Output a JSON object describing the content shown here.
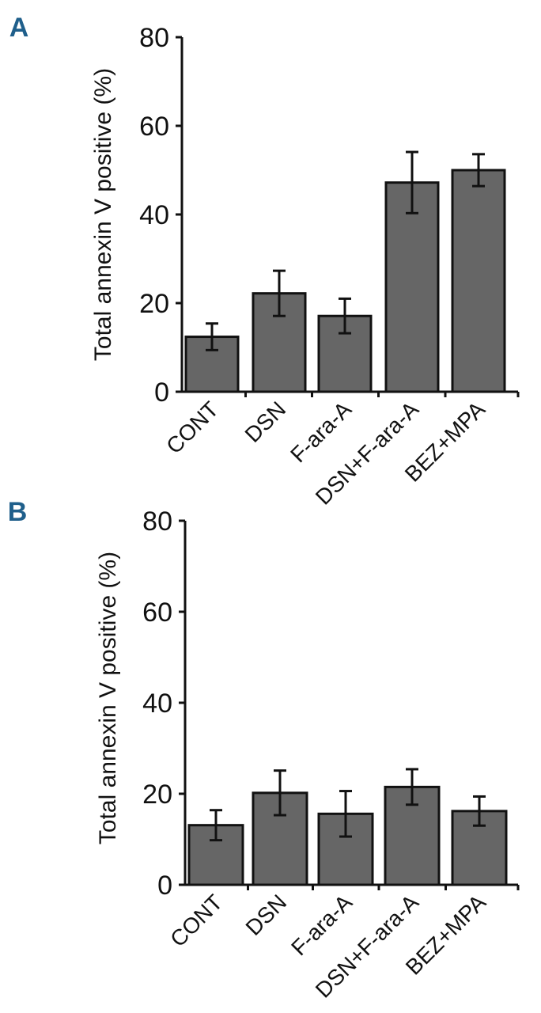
{
  "colors": {
    "bar_fill": "#666666",
    "bar_stroke": "#111111",
    "panel_label": "#1f5f8b",
    "axis": "#111111"
  },
  "chart_data": [
    {
      "panel_label": "A",
      "type": "bar",
      "categories": [
        "CONT",
        "DSN",
        "F-ara-A",
        "DSN+F-ara-A",
        "BEZ+MPA"
      ],
      "values": [
        12.4,
        22.2,
        17.1,
        47.2,
        50.0
      ],
      "errors": [
        3.0,
        5.1,
        3.9,
        6.9,
        3.6
      ],
      "xlabel": "",
      "ylabel": "Total annexin V positive (%)",
      "ylim": [
        0,
        80
      ],
      "yticks": [
        "0",
        "20",
        "40",
        "60",
        "80"
      ],
      "grid": false,
      "legend": false
    },
    {
      "panel_label": "B",
      "type": "bar",
      "categories": [
        "CONT",
        "DSN",
        "F-ara-A",
        "DSN+F-ara-A",
        "BEZ+MPA"
      ],
      "values": [
        13.1,
        20.2,
        15.6,
        21.5,
        16.2
      ],
      "errors": [
        3.3,
        4.9,
        5.0,
        3.9,
        3.2
      ],
      "xlabel": "",
      "ylabel": "Total annexin V positive (%)",
      "ylim": [
        0,
        80
      ],
      "yticks": [
        "0",
        "20",
        "40",
        "60",
        "80"
      ],
      "grid": false,
      "legend": false
    }
  ]
}
